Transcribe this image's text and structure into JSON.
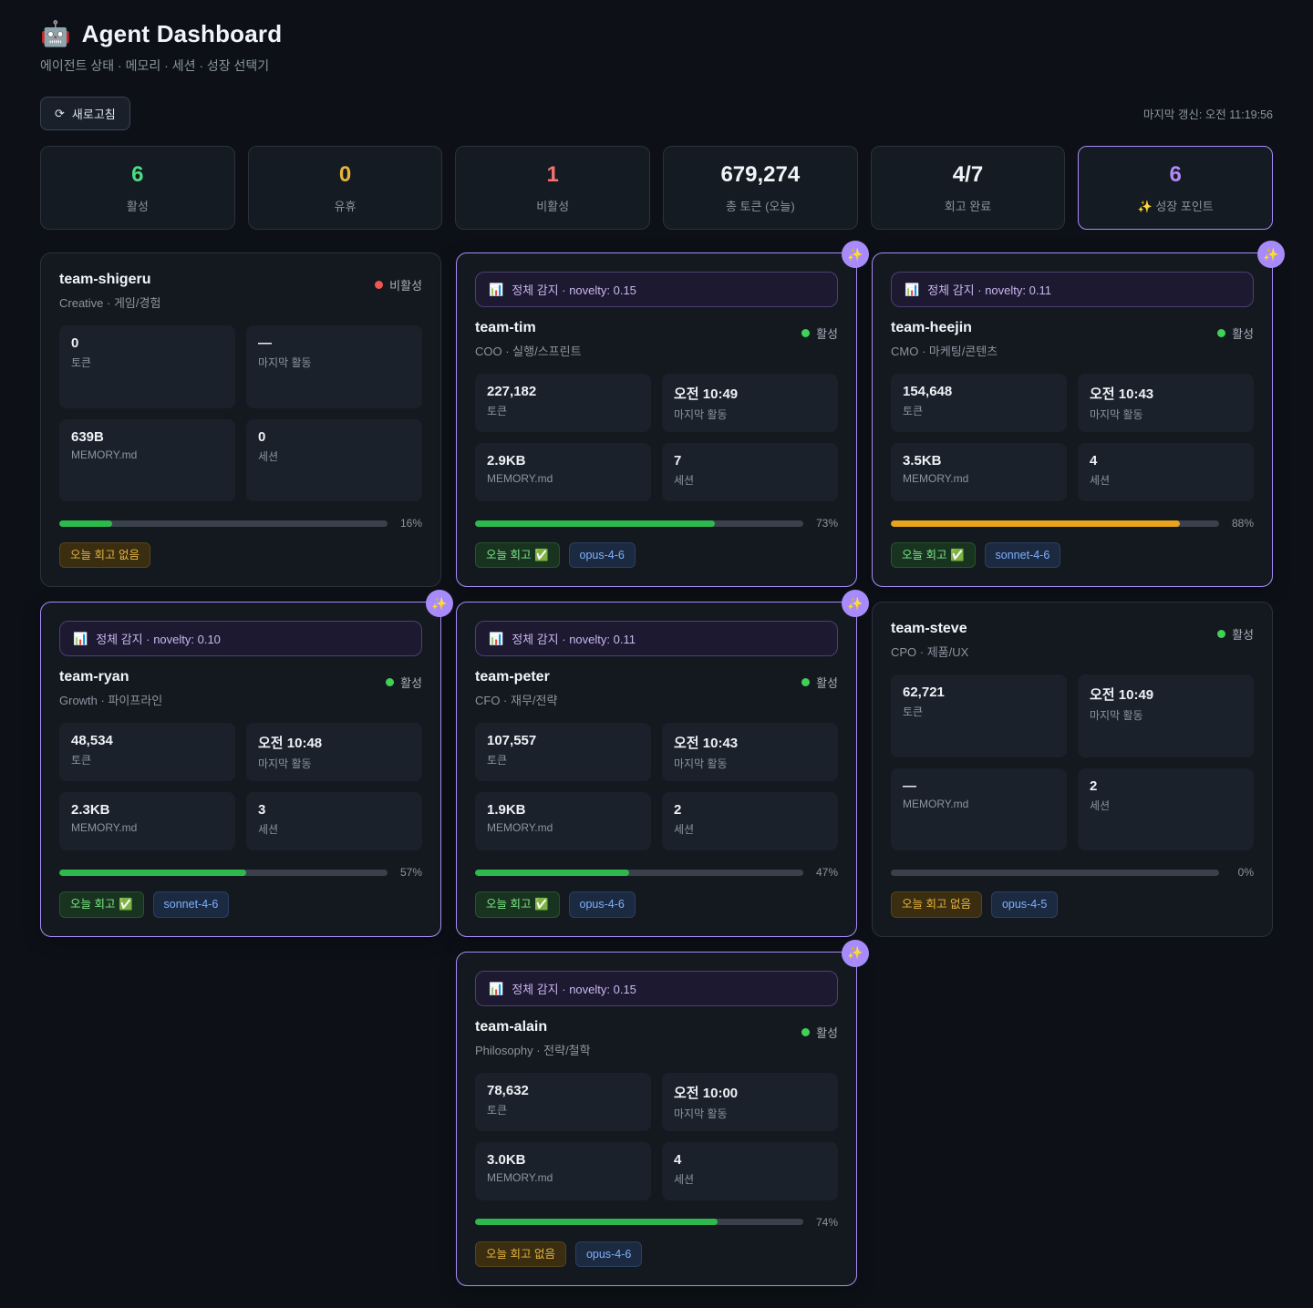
{
  "header": {
    "logo_icon": "🤖",
    "title": "Agent Dashboard",
    "subtitle": "에이전트 상태 · 메모리 · 세션 · 성장 선택기",
    "refresh_icon": "⟳",
    "refresh_label": "새로고침",
    "last_update": "마지막 갱신: 오전 11:19:56"
  },
  "summary": [
    {
      "value": "6",
      "label": "활성",
      "color": "#4ade80",
      "highlight": false
    },
    {
      "value": "0",
      "label": "유휴",
      "color": "#e8b339",
      "highlight": false
    },
    {
      "value": "1",
      "label": "비활성",
      "color": "#f87171",
      "highlight": false
    },
    {
      "value": "679,274",
      "label": "총 토큰 (오늘)",
      "color": "#f2f5f8",
      "highlight": false
    },
    {
      "value": "4/7",
      "label": "회고 완료",
      "color": "#f2f5f8",
      "highlight": false
    },
    {
      "value": "6",
      "label": "✨ 성장 포인트",
      "color": "#b18af8",
      "highlight": true
    }
  ],
  "field_labels": {
    "tokens": "토큰",
    "last_activity": "마지막 활동",
    "memory": "MEMORY.md",
    "sessions": "세션"
  },
  "identity_icon": "📊",
  "sparkle_icon": "✨",
  "status_colors": {
    "active": "#3fd158",
    "inactive": "#f05650"
  },
  "agents": [
    {
      "id": "team-shigeru",
      "role": "Creative · 게임/경험",
      "status": "비활성",
      "active": false,
      "growth": false,
      "banner_text": null,
      "tokens": "0",
      "last_activity": "—",
      "memory": "639B",
      "sessions": "0",
      "progress": 16,
      "progress_label": "16%",
      "progress_color": "#2eb94f",
      "retro": {
        "label": "오늘 회고 없음",
        "done": false,
        "icon": null
      },
      "model": null,
      "column": null
    },
    {
      "id": "team-tim",
      "role": "COO · 실행/스프린트",
      "status": "활성",
      "active": true,
      "growth": true,
      "banner_text": "정체 감지 · novelty: 0.15",
      "tokens": "227,182",
      "last_activity": "오전 10:49",
      "memory": "2.9KB",
      "sessions": "7",
      "progress": 73,
      "progress_label": "73%",
      "progress_color": "#2eb94f",
      "retro": {
        "label": "오늘 회고",
        "done": true,
        "icon": "✅"
      },
      "model": "opus-4-6",
      "column": null
    },
    {
      "id": "team-heejin",
      "role": "CMO · 마케팅/콘텐츠",
      "status": "활성",
      "active": true,
      "growth": true,
      "banner_text": "정체 감지 · novelty: 0.11",
      "tokens": "154,648",
      "last_activity": "오전 10:43",
      "memory": "3.5KB",
      "sessions": "4",
      "progress": 88,
      "progress_label": "88%",
      "progress_color": "#e8a41c",
      "retro": {
        "label": "오늘 회고",
        "done": true,
        "icon": "✅"
      },
      "model": "sonnet-4-6",
      "column": null
    },
    {
      "id": "team-ryan",
      "role": "Growth · 파이프라인",
      "status": "활성",
      "active": true,
      "growth": true,
      "banner_text": "정체 감지 · novelty: 0.10",
      "tokens": "48,534",
      "last_activity": "오전 10:48",
      "memory": "2.3KB",
      "sessions": "3",
      "progress": 57,
      "progress_label": "57%",
      "progress_color": "#2eb94f",
      "retro": {
        "label": "오늘 회고",
        "done": true,
        "icon": "✅"
      },
      "model": "sonnet-4-6",
      "column": null
    },
    {
      "id": "team-peter",
      "role": "CFO · 재무/전략",
      "status": "활성",
      "active": true,
      "growth": true,
      "banner_text": "정체 감지 · novelty: 0.11",
      "tokens": "107,557",
      "last_activity": "오전 10:43",
      "memory": "1.9KB",
      "sessions": "2",
      "progress": 47,
      "progress_label": "47%",
      "progress_color": "#2eb94f",
      "retro": {
        "label": "오늘 회고",
        "done": true,
        "icon": "✅"
      },
      "model": "opus-4-6",
      "column": null
    },
    {
      "id": "team-steve",
      "role": "CPO · 제품/UX",
      "status": "활성",
      "active": true,
      "growth": false,
      "banner_text": null,
      "tokens": "62,721",
      "last_activity": "오전 10:49",
      "memory": "—",
      "sessions": "2",
      "progress": 0,
      "progress_label": "0%",
      "progress_color": "#2eb94f",
      "retro": {
        "label": "오늘 회고 없음",
        "done": false,
        "icon": null
      },
      "model": "opus-4-5",
      "column": null
    },
    {
      "id": "team-alain",
      "role": "Philosophy · 전략/철학",
      "status": "활성",
      "active": true,
      "growth": true,
      "banner_text": "정체 감지 · novelty: 0.15",
      "tokens": "78,632",
      "last_activity": "오전 10:00",
      "memory": "3.0KB",
      "sessions": "4",
      "progress": 74,
      "progress_label": "74%",
      "progress_color": "#2eb94f",
      "retro": {
        "label": "오늘 회고 없음",
        "done": false,
        "icon": null
      },
      "model": "opus-4-6",
      "column": "2"
    }
  ]
}
